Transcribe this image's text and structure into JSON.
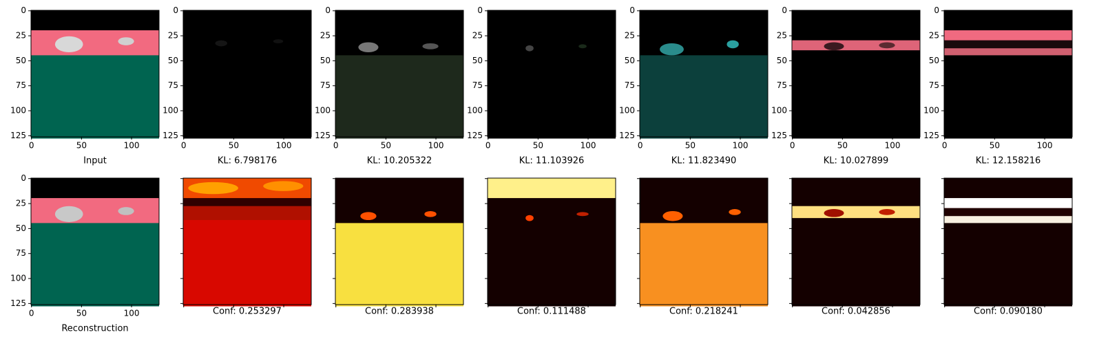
{
  "xticks": [
    0,
    50,
    100
  ],
  "yticks": [
    0,
    25,
    50,
    75,
    100,
    125
  ],
  "rows": [
    {
      "panels": [
        {
          "label": "Input"
        },
        {
          "label": "KL: 6.798176"
        },
        {
          "label": "KL: 10.205322"
        },
        {
          "label": "KL: 11.103926"
        },
        {
          "label": "KL: 11.823490"
        },
        {
          "label": "KL: 10.027899"
        },
        {
          "label": "KL: 12.158216"
        }
      ]
    },
    {
      "panels": [
        {
          "label": "Reconstruction"
        },
        {
          "label": "Conf: 0.253297"
        },
        {
          "label": "Conf: 0.283938"
        },
        {
          "label": "Conf: 0.111488"
        },
        {
          "label": "Conf: 0.218241"
        },
        {
          "label": "Conf: 0.042856"
        },
        {
          "label": "Conf: 0.090180"
        }
      ]
    }
  ]
}
